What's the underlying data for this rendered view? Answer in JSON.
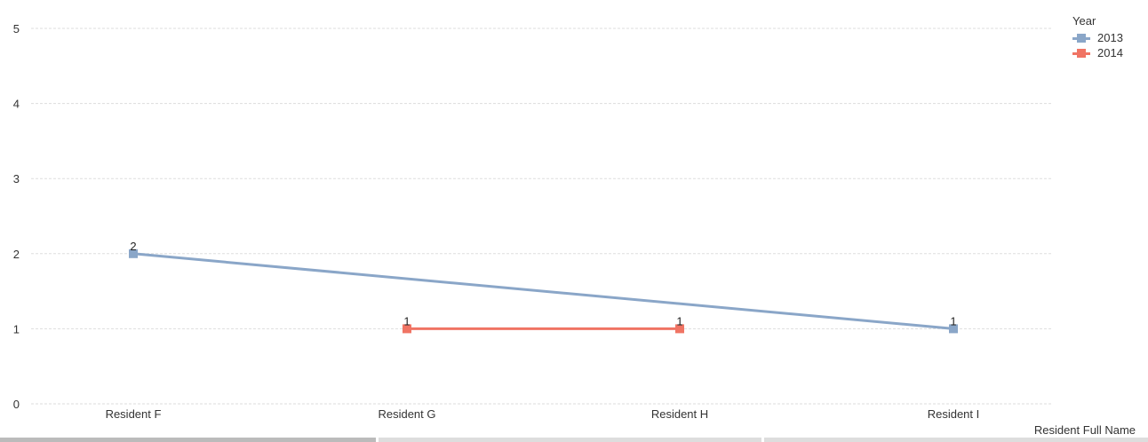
{
  "chart_data": {
    "type": "line",
    "categories": [
      "Resident F",
      "Resident G",
      "Resident H",
      "Resident I"
    ],
    "series": [
      {
        "name": "2013",
        "color": "#8aa6c8",
        "values": [
          2,
          null,
          null,
          1
        ]
      },
      {
        "name": "2014",
        "color": "#f07464",
        "values": [
          null,
          1,
          1,
          null
        ]
      }
    ],
    "xlabel": "Resident Full Name",
    "ylabel": "",
    "ylim": [
      0,
      5
    ],
    "yticks": [
      0,
      1,
      2,
      3,
      4,
      5
    ],
    "legend_title": "Year",
    "legend_position": "top-right",
    "grid": true,
    "data_labels": true
  }
}
